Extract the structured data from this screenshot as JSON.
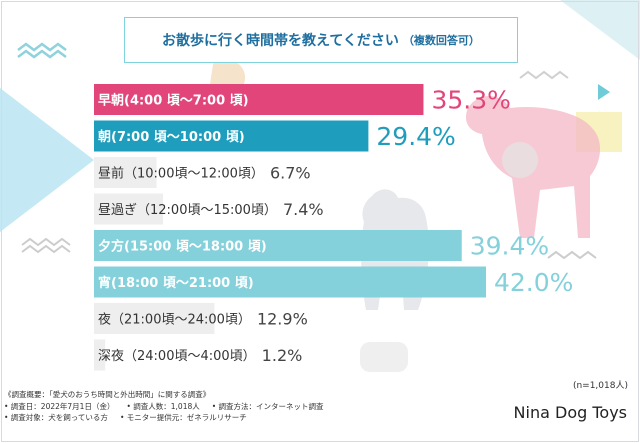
{
  "title": {
    "main": "お散歩に行く時間帯を教えてください",
    "note": "（複数回答可）"
  },
  "chart_data": {
    "type": "bar",
    "orientation": "horizontal",
    "categories": [
      "早朝(4:00 頃〜7:00 頃)",
      "朝(7:00 頃〜10:00 頃)",
      "昼前（10:00頃〜12:00頃）",
      "昼過ぎ（12:00頃〜15:00頃）",
      "夕方(15:00 頃〜18:00 頃)",
      "宵(18:00 頃〜21:00 頃)",
      "夜（21:00頃〜24:00頃）",
      "深夜（24:00頃〜4:00頃）"
    ],
    "values": [
      35.3,
      29.4,
      6.7,
      7.4,
      39.4,
      42.0,
      12.9,
      1.2
    ],
    "value_labels": [
      "35.3%",
      "29.4%",
      "6.7%",
      "7.4%",
      "39.4%",
      "42.0%",
      "12.9%",
      "1.2%"
    ],
    "unit": "%",
    "xlim": [
      0,
      42.0
    ],
    "grid": false,
    "legend": "none",
    "colors": {
      "early_morning": "#e2457a",
      "morning": "#1f9dbd",
      "evening": "#85d1db",
      "others": "#eeeeee",
      "value_dark": "#444444"
    },
    "bar_color_keys": [
      "early_morning",
      "morning",
      "others",
      "others",
      "evening",
      "evening",
      "others",
      "others"
    ]
  },
  "footer": {
    "sample_size": "(n=1,018人)",
    "survey": {
      "overview": "《調査概要：「愛犬のおうち時間と外出時間」に関する調査》",
      "date": "• 調査日：2022年7月1日（金）",
      "respondents": "• 調査人数：1,018人",
      "method": "• 調査方法：インターネット調査",
      "target": "• 調査対象：犬を飼っている方",
      "provider": "• モニター提供元：ゼネラルリサーチ"
    },
    "brand": "Nina Dog Toys"
  }
}
